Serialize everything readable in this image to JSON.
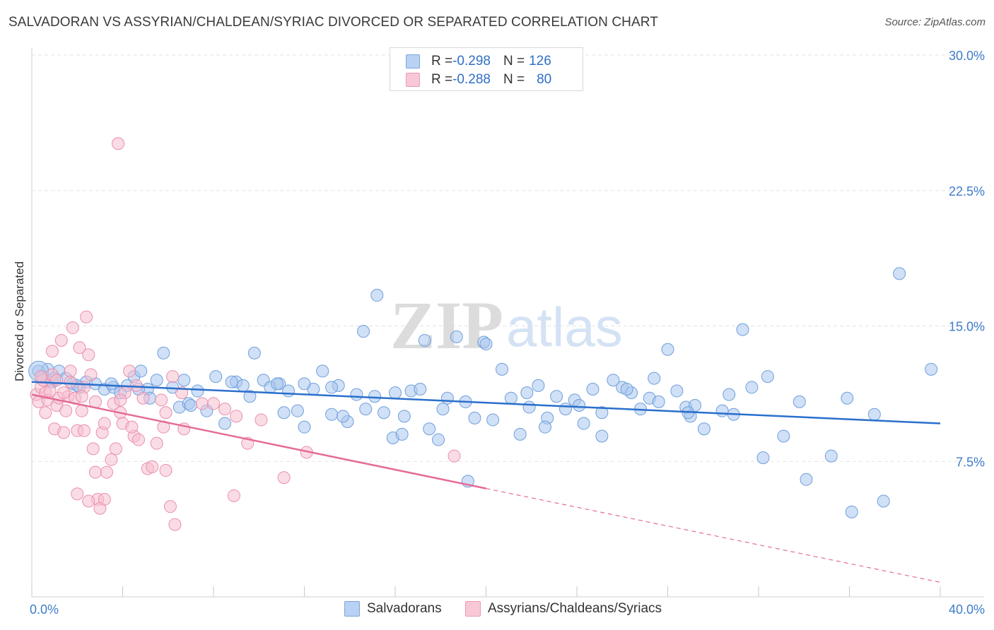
{
  "title": "SALVADORAN VS ASSYRIAN/CHALDEAN/SYRIAC DIVORCED OR SEPARATED CORRELATION CHART",
  "source": "Source: ZipAtlas.com",
  "watermark": {
    "zip": "ZIP",
    "atlas": "atlas"
  },
  "colors": {
    "blue_fill": "#a9c6ee",
    "blue_stroke": "#6f9fdc",
    "blue_line": "#2a6fcc",
    "pink_fill": "#f6bfd0",
    "pink_stroke": "#ea8fae",
    "pink_line": "#e56b98",
    "tick_text": "#3e7cc9",
    "grid": "#e3e3e3"
  },
  "legend": {
    "rows": [
      {
        "r_label": "R = ",
        "r_value": "-0.298",
        "n_label": "N = ",
        "n_value": "126"
      },
      {
        "r_label": "R = ",
        "r_value": "-0.288",
        "n_label": "N = ",
        "n_value": "80"
      }
    ]
  },
  "bottom_legend": [
    "Salvadorans",
    "Assyrians/Chaldeans/Syriacs"
  ],
  "chart_data": {
    "type": "scatter",
    "title": "SALVADORAN VS ASSYRIAN/CHALDEAN/SYRIAC DIVORCED OR SEPARATED CORRELATION CHART",
    "xlabel": "",
    "ylabel": "Divorced or Separated",
    "xlim": [
      0,
      40
    ],
    "ylim": [
      0,
      30
    ],
    "x_tick_labels": [
      "0.0%",
      "40.0%"
    ],
    "y_ticks": [
      7.5,
      15.0,
      22.5,
      30.0
    ],
    "y_tick_labels": [
      "7.5%",
      "15.0%",
      "22.5%",
      "30.0%"
    ],
    "x_minor_ticks": [
      0,
      4,
      8,
      12,
      16,
      20,
      24,
      28,
      32,
      36,
      40
    ],
    "grid": true,
    "legend_position": "top-center",
    "series": [
      {
        "name": "Salvadorans",
        "r": -0.298,
        "n": 126,
        "trend": {
          "x": [
            0,
            40
          ],
          "y": [
            11.9,
            9.6
          ]
        },
        "points": [
          [
            0.3,
            12.5
          ],
          [
            0.5,
            12.2
          ],
          [
            0.7,
            12.6
          ],
          [
            0.9,
            11.9
          ],
          [
            1.2,
            12.5
          ],
          [
            1.5,
            12.1
          ],
          [
            1.8,
            11.8
          ],
          [
            2.1,
            11.6
          ],
          [
            2.4,
            11.9
          ],
          [
            2.8,
            11.8
          ],
          [
            3.2,
            11.5
          ],
          [
            3.6,
            11.6
          ],
          [
            3.9,
            11.3
          ],
          [
            4.2,
            11.7
          ],
          [
            4.5,
            12.2
          ],
          [
            4.8,
            12.5
          ],
          [
            5.1,
            11.5
          ],
          [
            5.5,
            12.0
          ],
          [
            5.8,
            13.5
          ],
          [
            6.2,
            11.6
          ],
          [
            6.5,
            10.5
          ],
          [
            6.9,
            10.7
          ],
          [
            7.3,
            11.4
          ],
          [
            7.7,
            10.3
          ],
          [
            8.1,
            12.2
          ],
          [
            8.5,
            9.6
          ],
          [
            9.0,
            11.9
          ],
          [
            9.3,
            11.7
          ],
          [
            9.8,
            13.5
          ],
          [
            10.2,
            12.0
          ],
          [
            10.5,
            11.6
          ],
          [
            10.9,
            11.8
          ],
          [
            11.3,
            11.4
          ],
          [
            11.7,
            10.3
          ],
          [
            12.0,
            9.4
          ],
          [
            12.4,
            11.5
          ],
          [
            12.8,
            12.5
          ],
          [
            13.2,
            10.1
          ],
          [
            13.5,
            11.7
          ],
          [
            13.9,
            9.7
          ],
          [
            14.3,
            11.2
          ],
          [
            14.7,
            10.4
          ],
          [
            15.1,
            11.1
          ],
          [
            15.5,
            10.2
          ],
          [
            15.9,
            8.8
          ],
          [
            16.3,
            9.0
          ],
          [
            16.7,
            11.4
          ],
          [
            17.1,
            11.5
          ],
          [
            17.5,
            9.3
          ],
          [
            17.9,
            8.7
          ],
          [
            18.3,
            11.0
          ],
          [
            18.7,
            14.4
          ],
          [
            19.1,
            10.8
          ],
          [
            19.5,
            9.9
          ],
          [
            19.9,
            14.1
          ],
          [
            20.3,
            9.8
          ],
          [
            20.7,
            12.6
          ],
          [
            21.1,
            11.0
          ],
          [
            21.5,
            9.0
          ],
          [
            21.9,
            10.5
          ],
          [
            22.3,
            11.7
          ],
          [
            22.7,
            9.9
          ],
          [
            23.1,
            11.1
          ],
          [
            23.5,
            10.4
          ],
          [
            23.9,
            10.9
          ],
          [
            24.3,
            9.6
          ],
          [
            24.7,
            11.5
          ],
          [
            25.1,
            10.2
          ],
          [
            25.6,
            12.0
          ],
          [
            26.0,
            11.6
          ],
          [
            26.4,
            11.3
          ],
          [
            26.8,
            10.4
          ],
          [
            27.2,
            11.0
          ],
          [
            27.6,
            10.8
          ],
          [
            28.0,
            13.7
          ],
          [
            28.4,
            11.4
          ],
          [
            28.8,
            10.5
          ],
          [
            29.2,
            10.6
          ],
          [
            29.6,
            9.3
          ],
          [
            29.0,
            10.0
          ],
          [
            30.4,
            10.3
          ],
          [
            30.9,
            10.1
          ],
          [
            31.3,
            14.8
          ],
          [
            31.7,
            11.6
          ],
          [
            32.2,
            7.7
          ],
          [
            33.1,
            8.9
          ],
          [
            34.1,
            6.5
          ],
          [
            35.2,
            7.8
          ],
          [
            36.1,
            4.7
          ],
          [
            37.5,
            5.3
          ],
          [
            38.2,
            17.9
          ],
          [
            39.6,
            12.6
          ],
          [
            15.2,
            16.7
          ],
          [
            14.6,
            14.7
          ],
          [
            17.3,
            14.2
          ],
          [
            20.0,
            14.0
          ],
          [
            16.0,
            11.3
          ],
          [
            21.8,
            11.3
          ],
          [
            26.2,
            11.5
          ],
          [
            13.2,
            11.6
          ],
          [
            12.0,
            11.8
          ],
          [
            10.8,
            11.8
          ],
          [
            8.8,
            11.9
          ],
          [
            3.5,
            11.8
          ],
          [
            1.0,
            12.1
          ],
          [
            2.0,
            11.7
          ],
          [
            4.7,
            11.5
          ],
          [
            7.0,
            10.6
          ],
          [
            9.6,
            11.1
          ],
          [
            11.1,
            10.2
          ],
          [
            13.7,
            10.0
          ],
          [
            16.4,
            10.0
          ],
          [
            18.1,
            10.4
          ],
          [
            19.2,
            6.4
          ],
          [
            22.6,
            9.4
          ],
          [
            24.1,
            10.6
          ],
          [
            25.1,
            8.9
          ],
          [
            27.4,
            12.1
          ],
          [
            28.9,
            10.2
          ],
          [
            32.4,
            12.2
          ],
          [
            33.8,
            10.8
          ],
          [
            30.7,
            11.2
          ],
          [
            35.9,
            11.0
          ],
          [
            37.1,
            10.1
          ],
          [
            6.7,
            12.0
          ],
          [
            5.2,
            11.0
          ]
        ]
      },
      {
        "name": "Assyrians/Chaldeans/Syriacs",
        "r": -0.288,
        "n": 80,
        "trend": {
          "x": [
            0,
            20
          ],
          "y": [
            11.2,
            6.0
          ]
        },
        "trend_dashed": {
          "x": [
            20,
            40
          ],
          "y": [
            6.0,
            0.8
          ]
        },
        "points": [
          [
            0.2,
            11.2
          ],
          [
            0.3,
            10.8
          ],
          [
            0.4,
            11.6
          ],
          [
            0.5,
            12.0
          ],
          [
            0.6,
            11.3
          ],
          [
            0.7,
            10.9
          ],
          [
            0.8,
            11.4
          ],
          [
            0.9,
            12.3
          ],
          [
            1.0,
            9.3
          ],
          [
            1.1,
            10.6
          ],
          [
            1.2,
            11.0
          ],
          [
            1.3,
            14.2
          ],
          [
            1.4,
            9.1
          ],
          [
            1.5,
            10.3
          ],
          [
            1.6,
            11.1
          ],
          [
            1.7,
            12.5
          ],
          [
            1.8,
            14.9
          ],
          [
            1.9,
            11.0
          ],
          [
            2.0,
            9.2
          ],
          [
            2.1,
            13.8
          ],
          [
            2.2,
            10.3
          ],
          [
            2.3,
            11.6
          ],
          [
            2.4,
            15.5
          ],
          [
            2.5,
            13.4
          ],
          [
            2.6,
            12.3
          ],
          [
            2.7,
            8.2
          ],
          [
            2.8,
            6.9
          ],
          [
            2.9,
            5.4
          ],
          [
            3.0,
            4.9
          ],
          [
            3.1,
            9.1
          ],
          [
            3.3,
            6.9
          ],
          [
            3.5,
            7.6
          ],
          [
            3.7,
            8.2
          ],
          [
            3.9,
            10.2
          ],
          [
            4.1,
            11.3
          ],
          [
            4.3,
            12.5
          ],
          [
            4.5,
            8.9
          ],
          [
            4.7,
            8.7
          ],
          [
            4.9,
            11.0
          ],
          [
            5.1,
            7.1
          ],
          [
            5.3,
            7.2
          ],
          [
            5.5,
            8.5
          ],
          [
            5.7,
            10.9
          ],
          [
            5.9,
            7.0
          ],
          [
            6.1,
            5.0
          ],
          [
            6.3,
            4.0
          ],
          [
            6.7,
            9.3
          ],
          [
            7.5,
            10.7
          ],
          [
            8.0,
            10.7
          ],
          [
            8.5,
            10.4
          ],
          [
            9.0,
            10.0
          ],
          [
            9.5,
            8.5
          ],
          [
            10.1,
            9.8
          ],
          [
            11.1,
            6.6
          ],
          [
            8.9,
            5.6
          ],
          [
            12.1,
            8.0
          ],
          [
            18.6,
            7.8
          ],
          [
            3.8,
            25.1
          ],
          [
            0.9,
            13.6
          ],
          [
            1.7,
            11.9
          ],
          [
            0.6,
            10.2
          ],
          [
            2.3,
            9.2
          ],
          [
            4.0,
            9.6
          ],
          [
            5.8,
            9.4
          ],
          [
            6.6,
            11.3
          ],
          [
            1.4,
            11.3
          ],
          [
            2.8,
            10.8
          ],
          [
            3.6,
            10.7
          ],
          [
            4.4,
            9.4
          ],
          [
            3.2,
            9.6
          ],
          [
            2.0,
            5.7
          ],
          [
            2.5,
            5.3
          ],
          [
            3.2,
            5.4
          ],
          [
            4.6,
            11.7
          ],
          [
            5.9,
            10.2
          ],
          [
            1.1,
            12.0
          ],
          [
            0.4,
            12.2
          ],
          [
            2.2,
            11.1
          ],
          [
            3.9,
            10.9
          ],
          [
            6.2,
            12.2
          ]
        ]
      }
    ]
  }
}
